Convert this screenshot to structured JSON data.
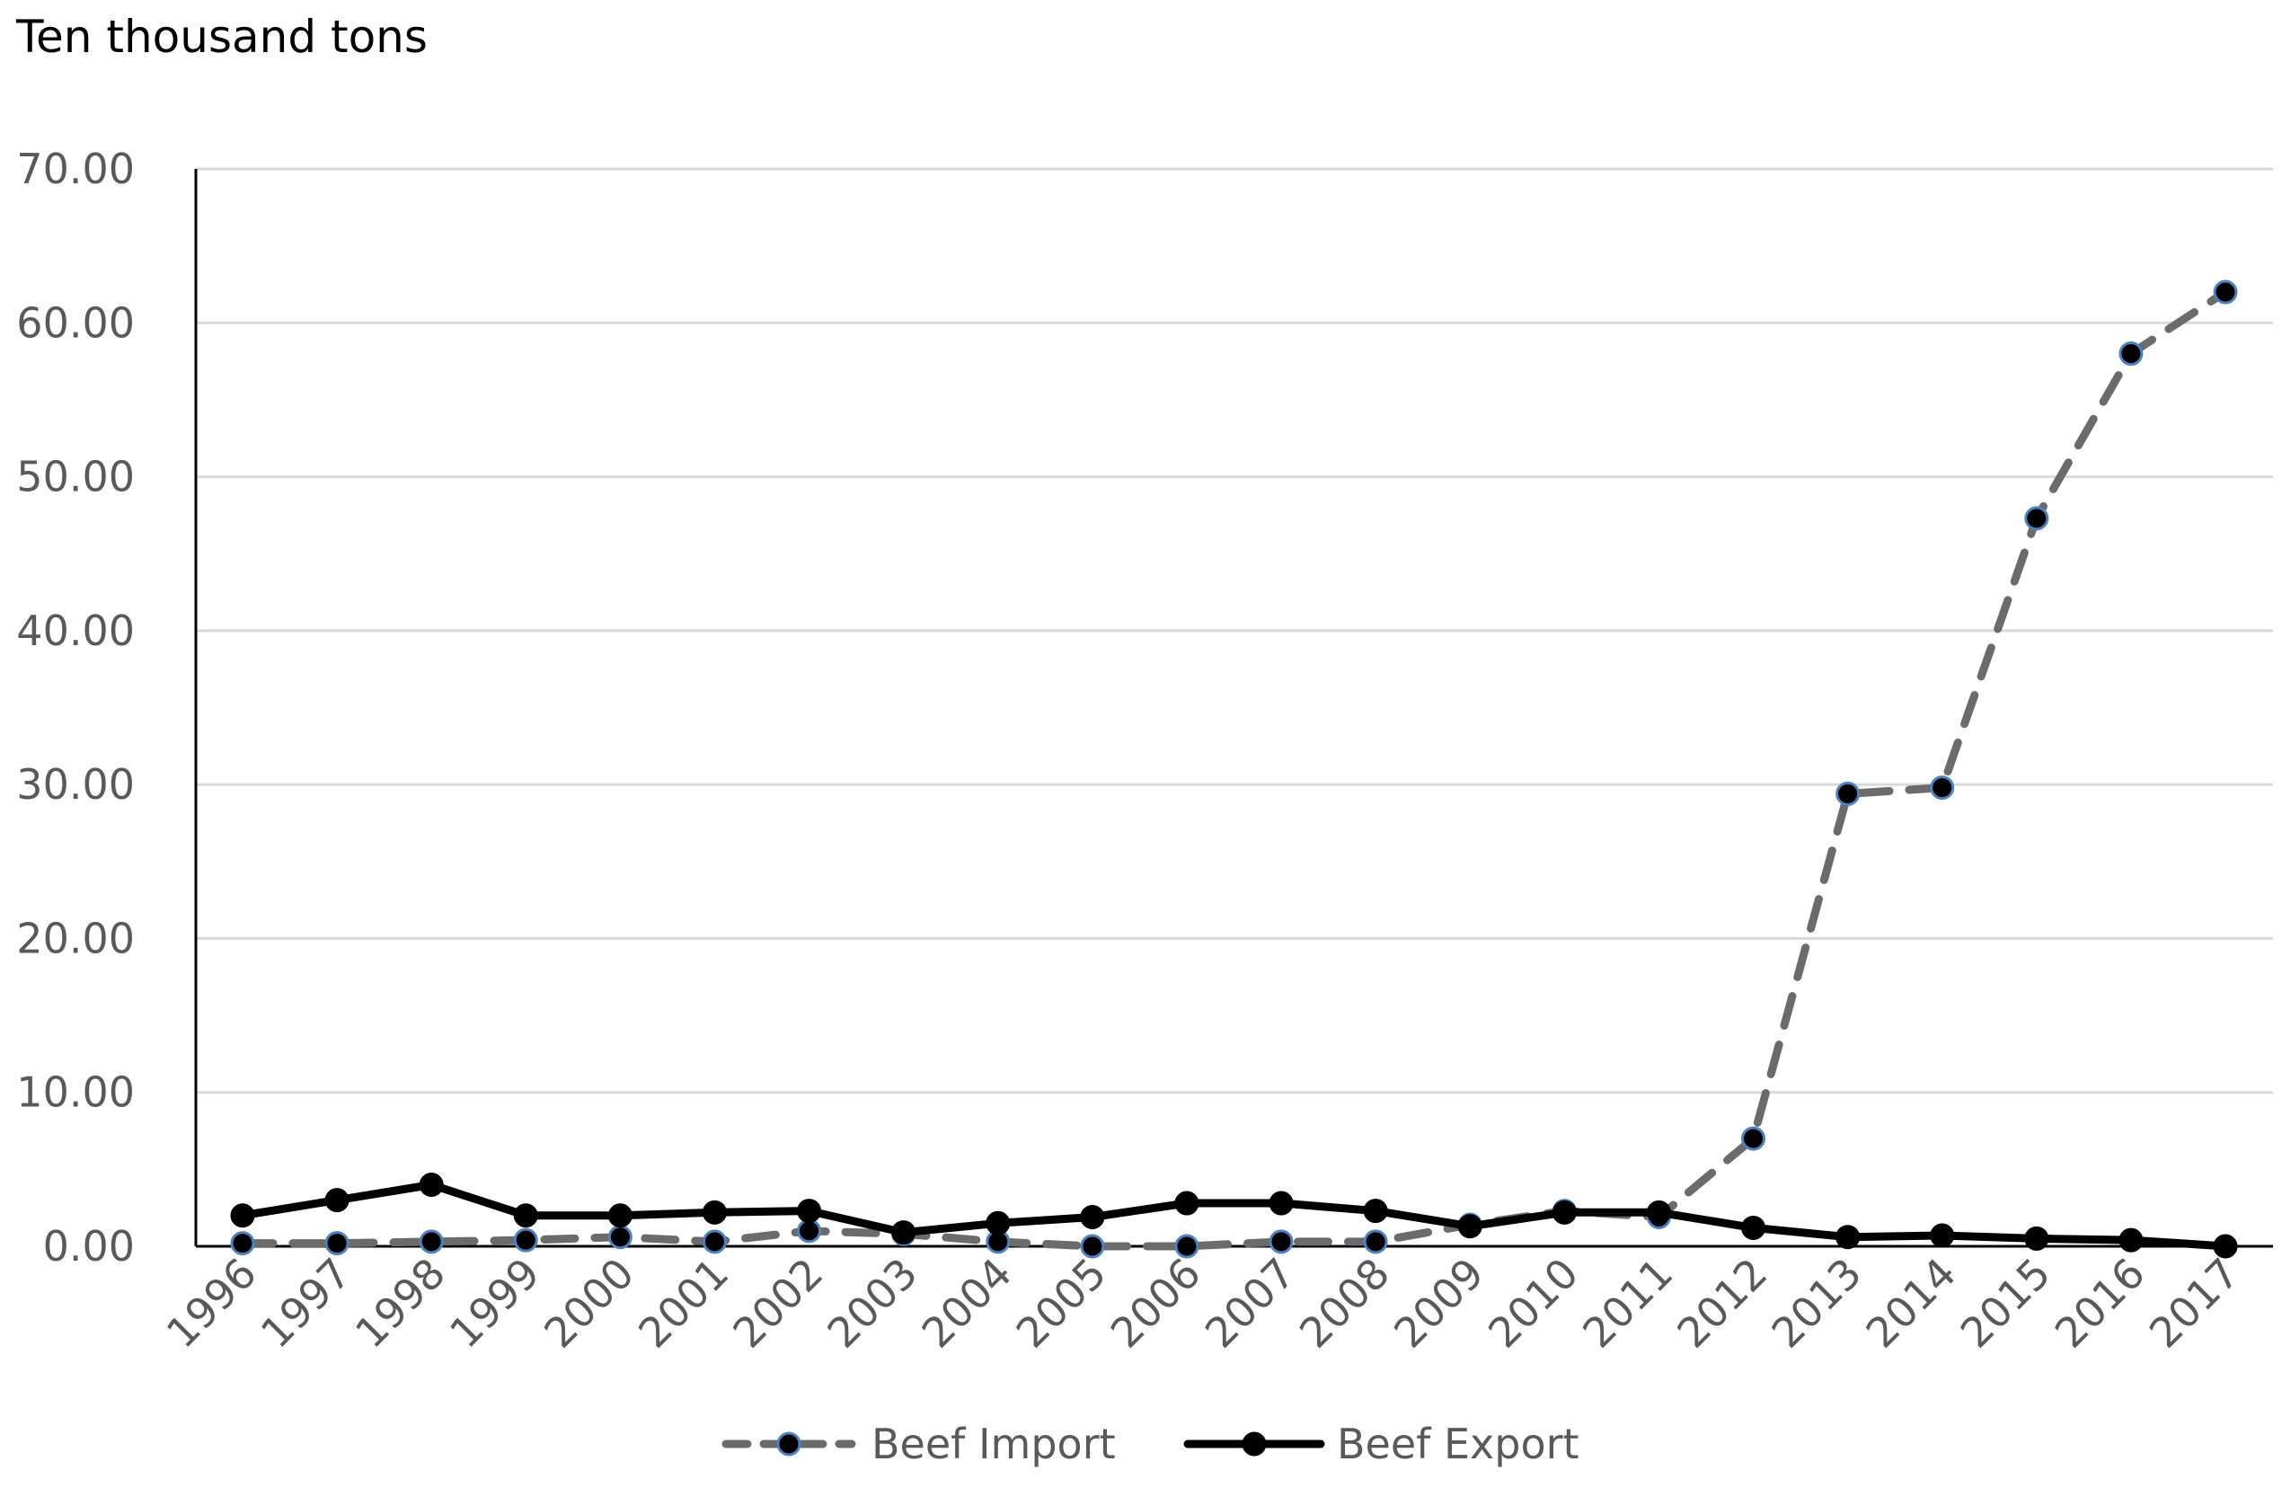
{
  "chart_data": {
    "type": "line",
    "title": "",
    "unit_label": "Ten thousand tons",
    "xlabel": "",
    "ylabel": "Ten thousand tons",
    "ylim": [
      0,
      70
    ],
    "y_ticks": [
      "0.00",
      "10.00",
      "20.00",
      "30.00",
      "40.00",
      "50.00",
      "60.00",
      "70.00"
    ],
    "grid": true,
    "legend_position": "bottom-center",
    "categories": [
      "1996",
      "1997",
      "1998",
      "1999",
      "2000",
      "2001",
      "2002",
      "2003",
      "2004",
      "2005",
      "2006",
      "2007",
      "2008",
      "2009",
      "2010",
      "2011",
      "2012",
      "2013",
      "2014",
      "2015",
      "2016",
      "2017"
    ],
    "series": [
      {
        "name": "Beef Import",
        "style": "dashed",
        "color": "#6b6b6b",
        "marker_fill": "#000000",
        "marker_stroke": "#4f81bd",
        "values": [
          0.2,
          0.2,
          0.3,
          0.4,
          0.6,
          0.3,
          1.0,
          0.8,
          0.3,
          0.0,
          0.0,
          0.3,
          0.3,
          1.4,
          2.3,
          1.9,
          7.0,
          29.4,
          29.8,
          47.3,
          58.0,
          62.0
        ]
      },
      {
        "name": "Beef Export",
        "style": "solid",
        "color": "#000000",
        "marker_fill": "#000000",
        "marker_stroke": "#000000",
        "values": [
          2.0,
          3.0,
          4.0,
          2.0,
          2.0,
          2.2,
          2.3,
          0.9,
          1.5,
          1.9,
          2.8,
          2.8,
          2.3,
          1.3,
          2.2,
          2.2,
          1.2,
          0.6,
          0.7,
          0.5,
          0.4,
          0.0
        ]
      }
    ]
  }
}
